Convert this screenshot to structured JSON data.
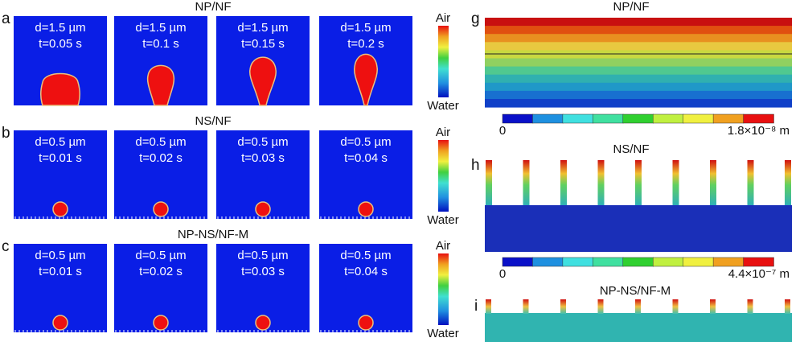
{
  "figure": {
    "left": {
      "rows": [
        {
          "letter": "a",
          "title": "NP/NF",
          "colorbar": {
            "top": "Air",
            "bottom": "Water"
          },
          "frames": [
            {
              "d": "d=1.5 µm",
              "t": "t=0.05 s"
            },
            {
              "d": "d=1.5 µm",
              "t": "t=0.1 s"
            },
            {
              "d": "d=1.5 µm",
              "t": "t=0.15 s"
            },
            {
              "d": "d=1.5 µm",
              "t": "t=0.2 s"
            }
          ]
        },
        {
          "letter": "b",
          "title": "NS/NF",
          "colorbar": {
            "top": "Air",
            "bottom": "Water"
          },
          "frames": [
            {
              "d": "d=0.5 µm",
              "t": "t=0.01 s"
            },
            {
              "d": "d=0.5 µm",
              "t": "t=0.02 s"
            },
            {
              "d": "d=0.5 µm",
              "t": "t=0.03 s"
            },
            {
              "d": "d=0.5 µm",
              "t": "t=0.04 s"
            }
          ]
        },
        {
          "letter": "c",
          "title": "NP-NS/NF-M",
          "colorbar": {
            "top": "Air",
            "bottom": "Water"
          },
          "frames": [
            {
              "d": "d=0.5 µm",
              "t": "t=0.01 s"
            },
            {
              "d": "d=0.5 µm",
              "t": "t=0.02 s"
            },
            {
              "d": "d=0.5 µm",
              "t": "t=0.03 s"
            },
            {
              "d": "d=0.5 µm",
              "t": "t=0.04 s"
            }
          ]
        }
      ]
    },
    "right": {
      "panels": [
        {
          "letter": "g",
          "title": "NP/NF",
          "scale": {
            "min": "0",
            "max": "1.8×10⁻⁸ m"
          }
        },
        {
          "letter": "h",
          "title": "NS/NF",
          "scale": {
            "min": "0",
            "max": "4.4×10⁻⁷ m"
          }
        },
        {
          "letter": "i",
          "title": "NP-NS/NF-M"
        }
      ]
    }
  }
}
